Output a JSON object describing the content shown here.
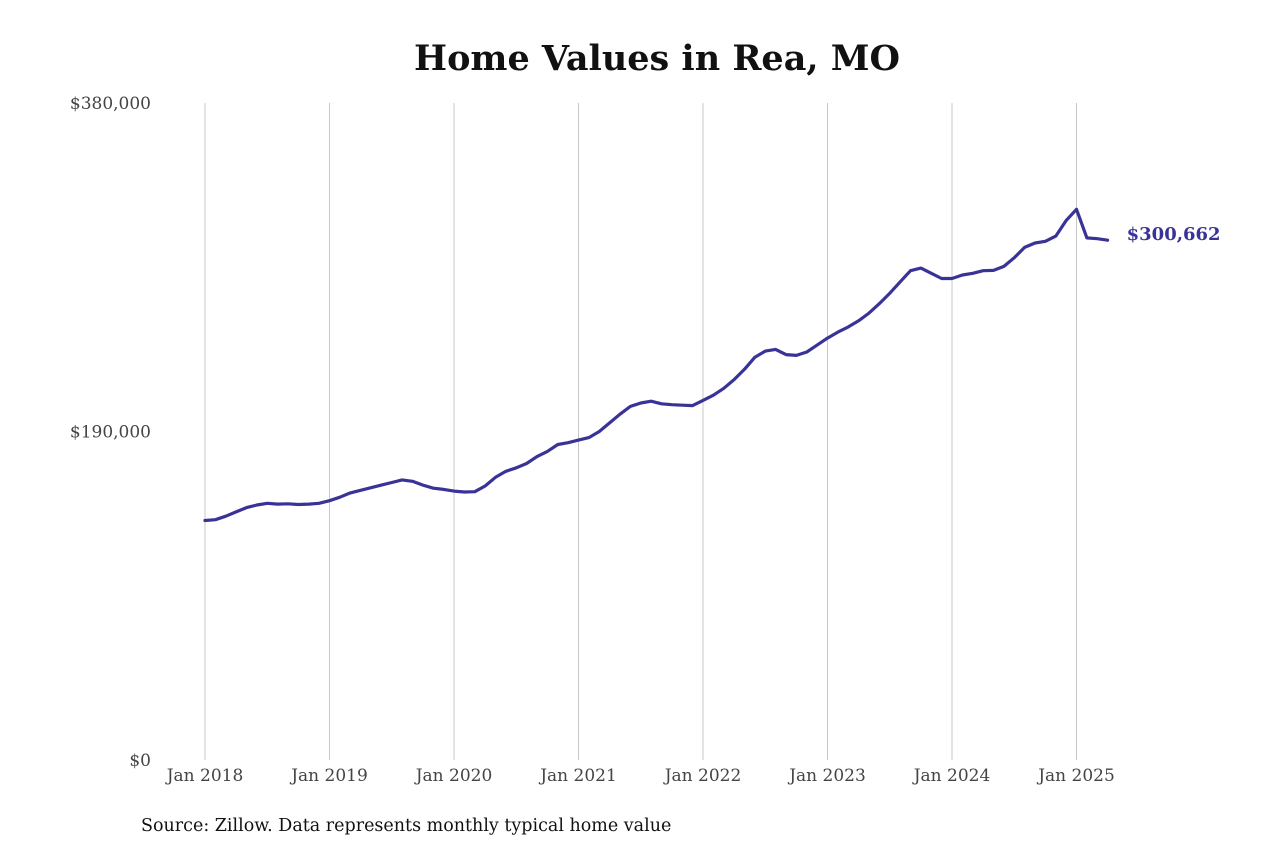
{
  "title": "Home Values in Rea, MO",
  "source": "Source: Zillow. Data represents monthly typical home value",
  "colors": {
    "line": "#3a3397",
    "grid": "#c8c8c8",
    "text": "#444444"
  },
  "chart_data": {
    "type": "line",
    "title": "Home Values in Rea, MO",
    "xlabel": "",
    "ylabel": "",
    "grid": "vertical",
    "x_start": "2018-01",
    "x_end": "2025-04",
    "ylim": [
      0,
      380000
    ],
    "y_ticks": [
      0,
      190000,
      380000
    ],
    "y_tick_labels": [
      "$0",
      "$190,000",
      "$380,000"
    ],
    "x_ticks": [
      "2018-01",
      "2019-01",
      "2020-01",
      "2021-01",
      "2022-01",
      "2023-01",
      "2024-01",
      "2025-01"
    ],
    "x_tick_labels": [
      "Jan 2018",
      "Jan 2019",
      "Jan 2020",
      "Jan 2021",
      "Jan 2022",
      "Jan 2023",
      "Jan 2024",
      "Jan 2025"
    ],
    "series": [
      {
        "x": [
          "2018-01",
          "2018-02",
          "2018-03",
          "2018-04",
          "2018-05",
          "2018-06",
          "2018-07",
          "2018-08",
          "2018-09",
          "2018-10",
          "2018-11",
          "2018-12",
          "2019-01",
          "2019-02",
          "2019-03",
          "2019-04",
          "2019-05",
          "2019-06",
          "2019-07",
          "2019-08",
          "2019-09",
          "2019-10",
          "2019-11",
          "2019-12",
          "2020-01",
          "2020-02",
          "2020-03",
          "2020-04",
          "2020-05",
          "2020-06",
          "2020-07",
          "2020-08",
          "2020-09",
          "2020-10",
          "2020-11",
          "2020-12",
          "2021-01",
          "2021-02",
          "2021-03",
          "2021-04",
          "2021-05",
          "2021-06",
          "2021-07",
          "2021-08",
          "2021-09",
          "2021-10",
          "2021-11",
          "2021-12",
          "2022-01",
          "2022-02",
          "2022-03",
          "2022-04",
          "2022-05",
          "2022-06",
          "2022-07",
          "2022-08",
          "2022-09",
          "2022-10",
          "2022-11",
          "2022-12",
          "2023-01",
          "2023-02",
          "2023-03",
          "2023-04",
          "2023-05",
          "2023-06",
          "2023-07",
          "2023-08",
          "2023-09",
          "2023-10",
          "2023-11",
          "2023-12",
          "2024-01",
          "2024-02",
          "2024-03",
          "2024-04",
          "2024-05",
          "2024-06",
          "2024-07",
          "2024-08",
          "2024-09",
          "2024-10",
          "2024-11",
          "2024-12",
          "2025-01",
          "2025-02",
          "2025-03",
          "2025-04"
        ],
        "values": [
          138500,
          139000,
          141000,
          143500,
          146000,
          147500,
          148500,
          148000,
          148200,
          147800,
          148000,
          148500,
          150000,
          152000,
          154500,
          156000,
          157500,
          159000,
          160500,
          162000,
          161200,
          159000,
          157200,
          156500,
          155500,
          155000,
          155200,
          158500,
          163500,
          167000,
          169000,
          171500,
          175500,
          178500,
          182500,
          183500,
          185000,
          186500,
          190000,
          195000,
          200000,
          204500,
          206500,
          207500,
          206000,
          205500,
          205200,
          205000,
          208000,
          211000,
          215000,
          220000,
          226000,
          233000,
          236500,
          237500,
          234500,
          234000,
          236000,
          240000,
          244000,
          247500,
          250500,
          254000,
          258500,
          264000,
          270000,
          276500,
          283000,
          284500,
          281500,
          278500,
          278500,
          280500,
          281500,
          283000,
          283200,
          285500,
          290500,
          296500,
          299000,
          300000,
          303000,
          312000,
          318500,
          302000,
          301500,
          300662
        ],
        "end_label": "$300,662"
      }
    ]
  }
}
